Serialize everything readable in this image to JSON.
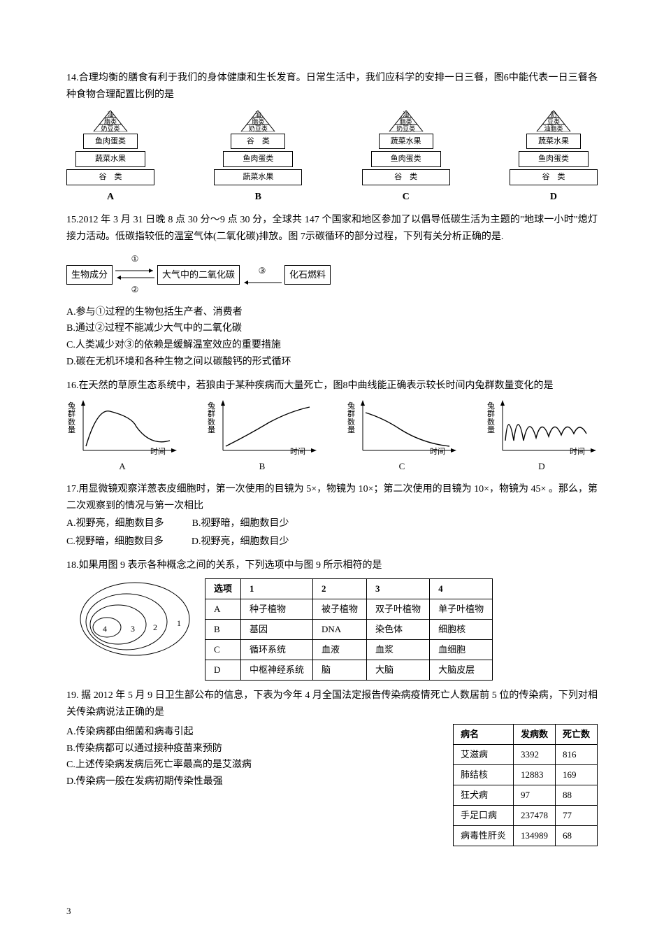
{
  "q14": {
    "stem": "14.合理均衡的膳食有利于我们的身体健康和生长发育。日常生活中，我们应科学的安排一日三餐，图6中能代表一日三餐各种食物合理配置比例的是",
    "pyramids": [
      {
        "letter": "A",
        "top": [
          "油",
          "脂类",
          "奶豆类"
        ],
        "mid": "鱼肉蛋类",
        "b1": "鱼肉蛋类",
        "b2": "蔬菜水果",
        "b3": "谷　类"
      },
      {
        "letter": "B",
        "top": [
          "油",
          "脂类",
          "奶豆类"
        ],
        "mid": "谷　类",
        "b1": "谷　类",
        "b2": "鱼肉蛋类",
        "b3": "蔬菜水果"
      },
      {
        "letter": "C",
        "top": [
          "油",
          "脂类",
          "奶豆类"
        ],
        "mid": "蔬菜水果",
        "b1": "蔬菜水果",
        "b2": "鱼肉蛋类",
        "b3": "谷　类"
      },
      {
        "letter": "D",
        "top": [
          "奶",
          "豆类",
          "油脂类"
        ],
        "mid": "蔬菜水果",
        "b1": "蔬菜水果",
        "b2": "鱼肉蛋类",
        "b3": "谷　类"
      }
    ]
  },
  "q15": {
    "stem": "15.2012 年 3 月 31 日晚 8 点 30 分～9 点 30 分，全球共 147 个国家和地区参加了以倡导低碳生活为主题的\"地球一小时\"熄灯接力活动。低碳指较低的温室气体(二氧化碳)排放。图 7示碳循环的部分过程，下列有关分析正确的是.",
    "flow": {
      "box1": "生物成分",
      "lbl1": "①",
      "lbl2": "②",
      "box2": "大气中的二氧化碳",
      "lbl3": "③",
      "box3": "化石燃料"
    },
    "opts": [
      "A.参与①过程的生物包括生产者、消费者",
      "B.通过②过程不能减少大气中的二氧化碳",
      "C.人类减少对③的依赖是缓解温室效应的重要措施",
      "D.碳在无机环境和各种生物之间以碳酸钙的形式循环"
    ]
  },
  "q16": {
    "stem": "16.在天然的草原生态系统中，若狼由于某种疾病而大量死亡，图8中曲线能正确表示较长时间内兔群数量变化的是",
    "ylabel": "兔群数量",
    "xlabel": "时间",
    "letters": [
      "A",
      "B",
      "C",
      "D"
    ]
  },
  "q17": {
    "stem": "17.用显微镜观察洋葱表皮细胞时，第一次使用的目镜为 5×，物镜为 10×；第二次使用的目镜为 10×，物镜为 45× 。那么，第二次观察到的情况与第一次相比",
    "row1": [
      "A.视野亮，细胞数目多",
      "B.视野暗，细胞数目少"
    ],
    "row2": [
      "C.视野暗，细胞数目多",
      "D.视野亮，细胞数目少"
    ]
  },
  "q18": {
    "stem": "18.如果用图 9 表示各种概念之间的关系，下列选项中与图 9 所示相符的是",
    "venn_nums": [
      "4",
      "3",
      "2",
      "1"
    ],
    "header": [
      "选项",
      "1",
      "2",
      "3",
      "4"
    ],
    "rows": [
      [
        "A",
        "种子植物",
        "被子植物",
        "双子叶植物",
        "单子叶植物"
      ],
      [
        "B",
        "基因",
        "DNA",
        "染色体",
        "细胞核"
      ],
      [
        "C",
        "循环系统",
        "血液",
        "血浆",
        "血细胞"
      ],
      [
        "D",
        "中枢神经系统",
        "脑",
        "大脑",
        "大脑皮层"
      ]
    ]
  },
  "q19": {
    "stem": "19. 据 2012 年 5 月 9 日卫生部公布的信息，下表为今年 4 月全国法定报告传染病疫情死亡人数居前 5 位的传染病，下列对相关传染病说法正确的是",
    "opts": [
      "A.传染病都由细菌和病毒引起",
      "B.传染病都可以通过接种疫苗来预防",
      "C.上述传染病发病后死亡率最高的是艾滋病",
      "D.传染病一般在发病初期传染性最强"
    ],
    "header": [
      "病名",
      "发病数",
      "死亡数"
    ],
    "rows": [
      [
        "艾滋病",
        "3392",
        "816"
      ],
      [
        "肺结核",
        "12883",
        "169"
      ],
      [
        "狂犬病",
        "97",
        "88"
      ],
      [
        "手足口病",
        "237478",
        "77"
      ],
      [
        "病毒性肝炎",
        "134989",
        "68"
      ]
    ]
  },
  "page": "3"
}
